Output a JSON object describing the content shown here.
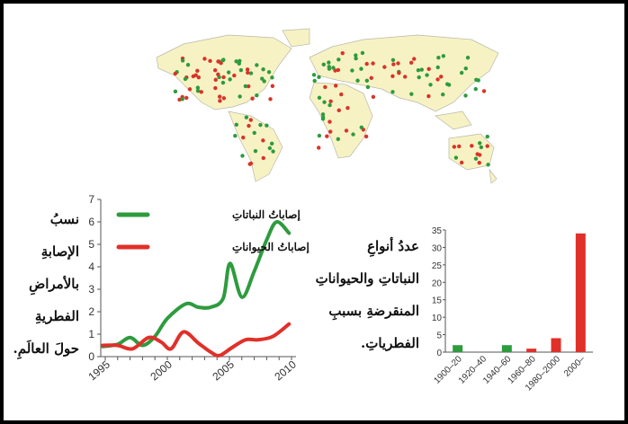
{
  "map": {
    "colors": {
      "land": "#f7f2c4",
      "outline": "#b8b8a8",
      "plant_dot": "#2e9b3e",
      "animal_dot": "#d93328"
    }
  },
  "left_caption": [
    "نسبُ",
    "الإصابةِ",
    "بالأمراضِ",
    "الفطريةِ",
    "حولَ العالَمِ."
  ],
  "right_caption": [
    "عددُ أنواعِ",
    "النباتاتِ والحيواناتِ",
    "المنقرضةِ بسببِ",
    "الفطرياتِ."
  ],
  "chart_data": [
    {
      "type": "line",
      "xlim": [
        1995,
        2010.5
      ],
      "ylim": [
        0,
        7
      ],
      "xticks": [
        1995,
        2000,
        2005,
        2010
      ],
      "yticks": [
        0,
        1,
        2,
        3,
        4,
        5,
        6,
        7
      ],
      "legend": "top-left",
      "series": [
        {
          "name": "إصاباتُ النباتاتِ",
          "color": "#2e9b3e",
          "x": [
            1994.8,
            1996,
            1997,
            1998,
            1999,
            2000,
            2001.5,
            2002.5,
            2003.5,
            2004.5,
            2005.05,
            2006,
            2007,
            2008,
            2008.8,
            2009.8
          ],
          "y": [
            0.45,
            0.55,
            0.85,
            0.5,
            0.9,
            1.7,
            2.35,
            2.2,
            2.2,
            2.6,
            4.15,
            2.65,
            3.8,
            5.2,
            6.0,
            5.5
          ]
        },
        {
          "name": "إصاباتُ الحيواناتِ",
          "color": "#e0302a",
          "x": [
            1994.8,
            1996,
            1997.2,
            1998.5,
            1999.5,
            2000.3,
            2001.3,
            2002.5,
            2003.5,
            2004.2,
            2005.2,
            2006.3,
            2007.3,
            2008.5,
            2009.8
          ],
          "y": [
            0.5,
            0.5,
            0.35,
            0.85,
            0.65,
            0.35,
            1.1,
            0.6,
            0.2,
            0.05,
            0.4,
            0.75,
            0.75,
            0.9,
            1.45
          ]
        }
      ]
    },
    {
      "type": "bar",
      "categories": [
        "1900–20",
        "1920–40",
        "1940–60",
        "1960–80",
        "1980–2000",
        "2000–"
      ],
      "values": [
        2,
        0,
        2,
        1,
        4,
        34
      ],
      "colors": [
        "#2e9b3e",
        "#2e9b3e",
        "#2e9b3e",
        "#e0302a",
        "#e0302a",
        "#e0302a"
      ],
      "ylim": [
        0,
        35
      ],
      "yticks": [
        0,
        5,
        10,
        15,
        20,
        25,
        30,
        35
      ]
    }
  ]
}
